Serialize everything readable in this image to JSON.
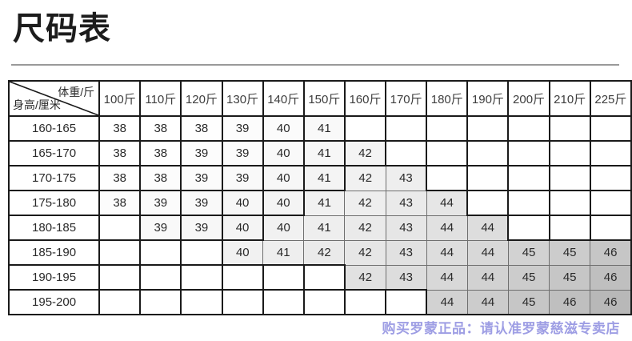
{
  "page": {
    "title": "尺码表",
    "footer_note": "购买罗蒙正品：请认准罗蒙慈滋专卖店"
  },
  "chart_data": {
    "type": "table",
    "title": "尺码表",
    "corner": {
      "top_label": "体重/斤",
      "bottom_label": "身高/厘米"
    },
    "columns": [
      "100斤",
      "110斤",
      "120斤",
      "130斤",
      "140斤",
      "150斤",
      "160斤",
      "170斤",
      "180斤",
      "190斤",
      "200斤",
      "210斤",
      "225斤"
    ],
    "rows": [
      {
        "height": "160-165",
        "sizes": [
          "38",
          "38",
          "38",
          "39",
          "40",
          "41",
          "",
          "",
          "",
          "",
          "",
          "",
          ""
        ]
      },
      {
        "height": "165-170",
        "sizes": [
          "38",
          "38",
          "39",
          "39",
          "40",
          "41",
          "42",
          "",
          "",
          "",
          "",
          "",
          ""
        ]
      },
      {
        "height": "170-175",
        "sizes": [
          "38",
          "38",
          "39",
          "39",
          "40",
          "41",
          "42",
          "43",
          "",
          "",
          "",
          "",
          ""
        ]
      },
      {
        "height": "175-180",
        "sizes": [
          "38",
          "39",
          "39",
          "40",
          "40",
          "41",
          "42",
          "43",
          "44",
          "",
          "",
          "",
          ""
        ]
      },
      {
        "height": "180-185",
        "sizes": [
          "",
          "39",
          "39",
          "40",
          "40",
          "41",
          "42",
          "43",
          "44",
          "44",
          "",
          "",
          ""
        ]
      },
      {
        "height": "185-190",
        "sizes": [
          "",
          "",
          "",
          "40",
          "41",
          "42",
          "42",
          "43",
          "44",
          "44",
          "45",
          "45",
          "46"
        ]
      },
      {
        "height": "190-195",
        "sizes": [
          "",
          "",
          "",
          "",
          "",
          "",
          "42",
          "43",
          "44",
          "44",
          "45",
          "45",
          "46"
        ]
      },
      {
        "height": "195-200",
        "sizes": [
          "",
          "",
          "",
          "",
          "",
          "",
          "",
          "",
          "44",
          "44",
          "45",
          "46",
          "46"
        ]
      }
    ],
    "layout_hints": {
      "shading": "filled cells darken diagonally toward bottom-right",
      "empty_cells": "white"
    }
  },
  "colors": {
    "title_text": "#1c1c1c",
    "divider": "#9a9a9a",
    "table_border": "#1a1a1a",
    "thin_cell_border": "#6f6f6f",
    "cell_text": "#2a2a2a",
    "footer_text": "#9e9ee4",
    "shade_lightest": "#f4f4f4",
    "shade_darkest": "#b8b8b8"
  }
}
